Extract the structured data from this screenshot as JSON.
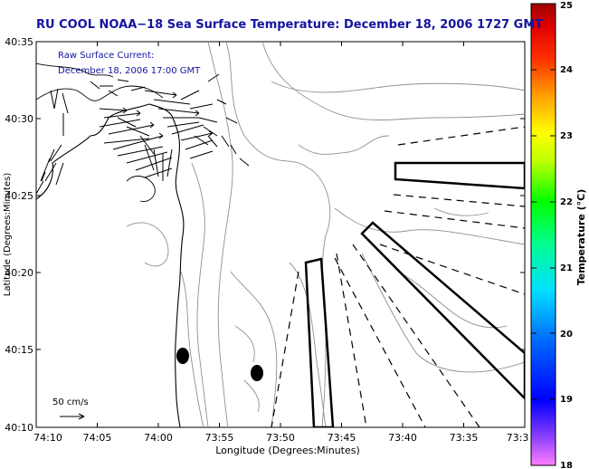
{
  "title": "RU COOL  NOAA−18  Sea Surface Temperature:  December 18, 2006 1727 GMT",
  "annotation": {
    "line1": "Raw Surface Current:",
    "line2": "December 18, 2006 17:00 GMT"
  },
  "scale_label": "50 cm/s",
  "axes": {
    "xlabel": "Longitude (Degrees:Minutes)",
    "ylabel": "Latitude (Degrees:Minutes)",
    "x_ticks": [
      "74:10",
      "74:05",
      "74:00",
      "73:55",
      "73:50",
      "73:45",
      "73:40",
      "73:35",
      "73:3"
    ],
    "y_ticks": [
      "40:35",
      "40:30",
      "40:25",
      "40:20",
      "40:15",
      "40:10"
    ]
  },
  "colorbar": {
    "label": "Temperature (°C)",
    "ticks": [
      "25",
      "24",
      "23",
      "22",
      "21",
      "20",
      "19",
      "18"
    ],
    "min": 18,
    "max": 25
  }
}
